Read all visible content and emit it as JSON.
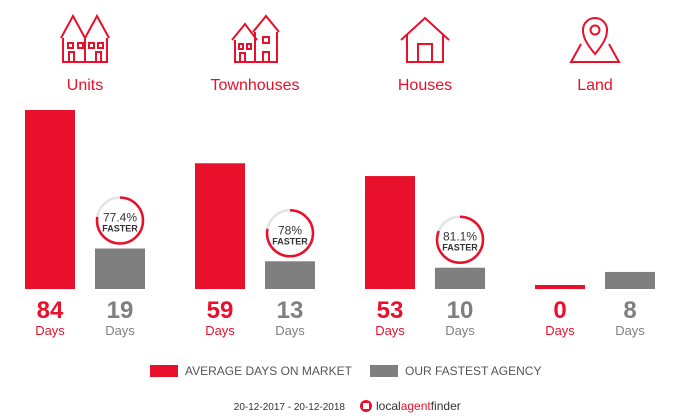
{
  "chart_data": {
    "type": "bar",
    "categories": [
      "Units",
      "Townhouses",
      "Houses",
      "Land"
    ],
    "unit": "Days",
    "series": [
      {
        "name": "AVERAGE DAYS ON MARKET",
        "color": "#e8102a",
        "values": [
          84,
          59,
          53,
          0
        ]
      },
      {
        "name": "OUR FASTEST AGENCY",
        "color": "#7f7f7f",
        "values": [
          19,
          13,
          10,
          8
        ]
      }
    ],
    "faster": [
      {
        "percent": "77.4%",
        "label": "FASTER",
        "fraction": 0.774
      },
      {
        "percent": "78%",
        "label": "FASTER",
        "fraction": 0.78
      },
      {
        "percent": "81.1%",
        "label": "FASTER",
        "fraction": 0.811
      },
      null
    ],
    "ylim": [
      0,
      84
    ]
  },
  "icons": [
    "units-icon",
    "townhouses-icon",
    "houses-icon",
    "land-pin-icon"
  ],
  "footer": {
    "date_range": "20-12-2017 - 20-12-2018",
    "brand": [
      "local",
      "agent",
      "finder"
    ]
  }
}
